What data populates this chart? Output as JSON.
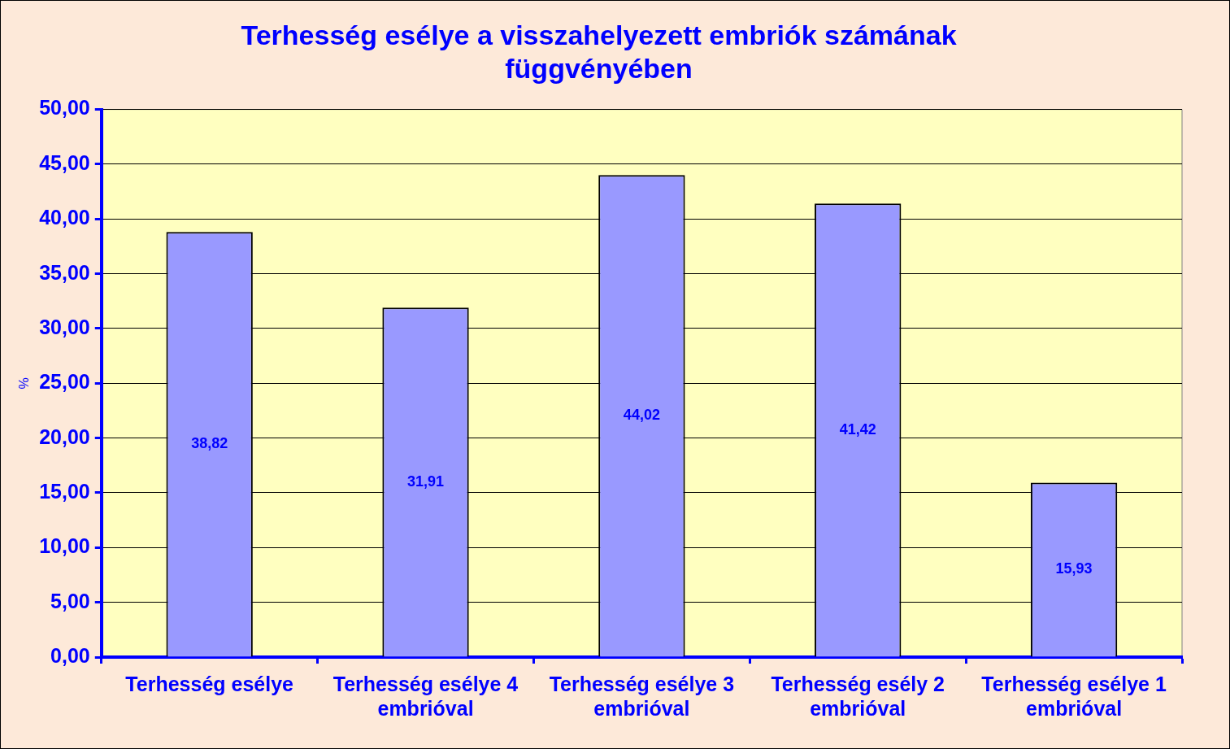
{
  "chart_data": {
    "type": "bar",
    "title": "Terhesség esélye a visszahelyezett embriók számának függvényében",
    "ylabel": "%",
    "categories": [
      "Terhesség esélye",
      "Terhesség esélye 4 embrióval",
      "Terhesség esélye 3 embrióval",
      "Terhesség esély 2 embrióval",
      "Terhesség esélye 1 embrióval"
    ],
    "values": [
      38.82,
      31.91,
      44.02,
      41.42,
      15.93
    ],
    "value_labels": [
      "38,82",
      "31,91",
      "44,02",
      "41,42",
      "15,93"
    ],
    "color": "#9999ff",
    "ylim": [
      0,
      50
    ],
    "yticks": [
      {
        "value": 0,
        "label": "0,00"
      },
      {
        "value": 5,
        "label": "5,00"
      },
      {
        "value": 10,
        "label": "10,00"
      },
      {
        "value": 15,
        "label": "15,00"
      },
      {
        "value": 20,
        "label": "20,00"
      },
      {
        "value": 25,
        "label": "25,00"
      },
      {
        "value": 30,
        "label": "30,00"
      },
      {
        "value": 35,
        "label": "35,00"
      },
      {
        "value": 40,
        "label": "40,00"
      },
      {
        "value": 45,
        "label": "45,00"
      },
      {
        "value": 50,
        "label": "50,00"
      }
    ],
    "grid": "y",
    "legend": false
  }
}
